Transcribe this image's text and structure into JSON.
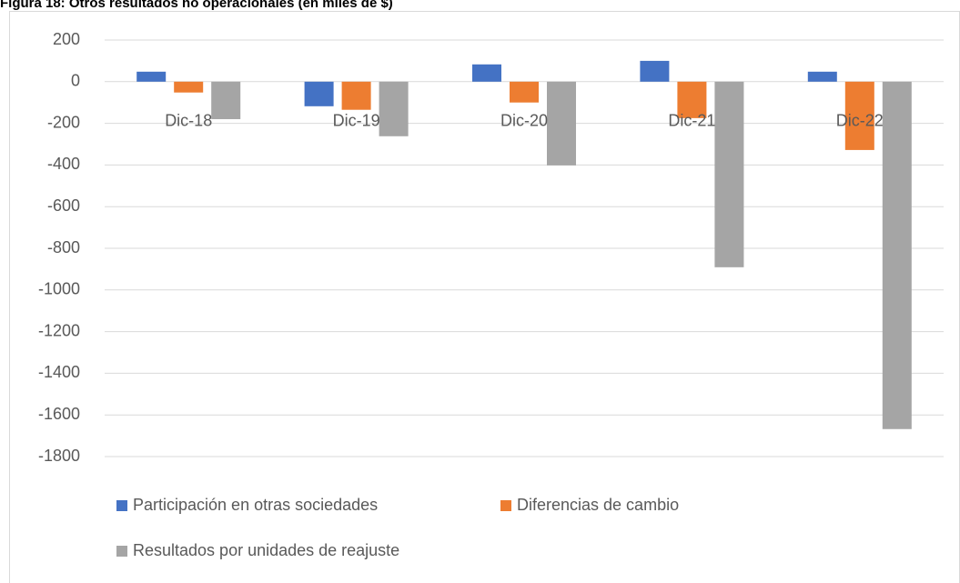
{
  "chart_data": {
    "type": "bar",
    "title": "Figura 18: Otros resultados no operacionales (en miles de $)",
    "categories": [
      "Dic-18",
      "Dic-19",
      "Dic-20",
      "Dic-21",
      "Dic-22"
    ],
    "series": [
      {
        "name": "Participación en otras sociedades",
        "color": "#4472c4",
        "values": [
          48,
          -118,
          83,
          100,
          48
        ]
      },
      {
        "name": "Diferencias de cambio",
        "color": "#ed7d31",
        "values": [
          -52,
          -135,
          -100,
          -175,
          -328
        ]
      },
      {
        "name": "Resultados por unidades de reajuste",
        "color": "#a5a5a5",
        "values": [
          -180,
          -262,
          -402,
          -891,
          -1668
        ]
      }
    ],
    "ylim": [
      -1800,
      200
    ],
    "yticks": [
      200,
      0,
      -200,
      -400,
      -600,
      -800,
      -1000,
      -1200,
      -1400,
      -1600,
      -1800
    ],
    "grid": true,
    "legend": "bottom"
  }
}
